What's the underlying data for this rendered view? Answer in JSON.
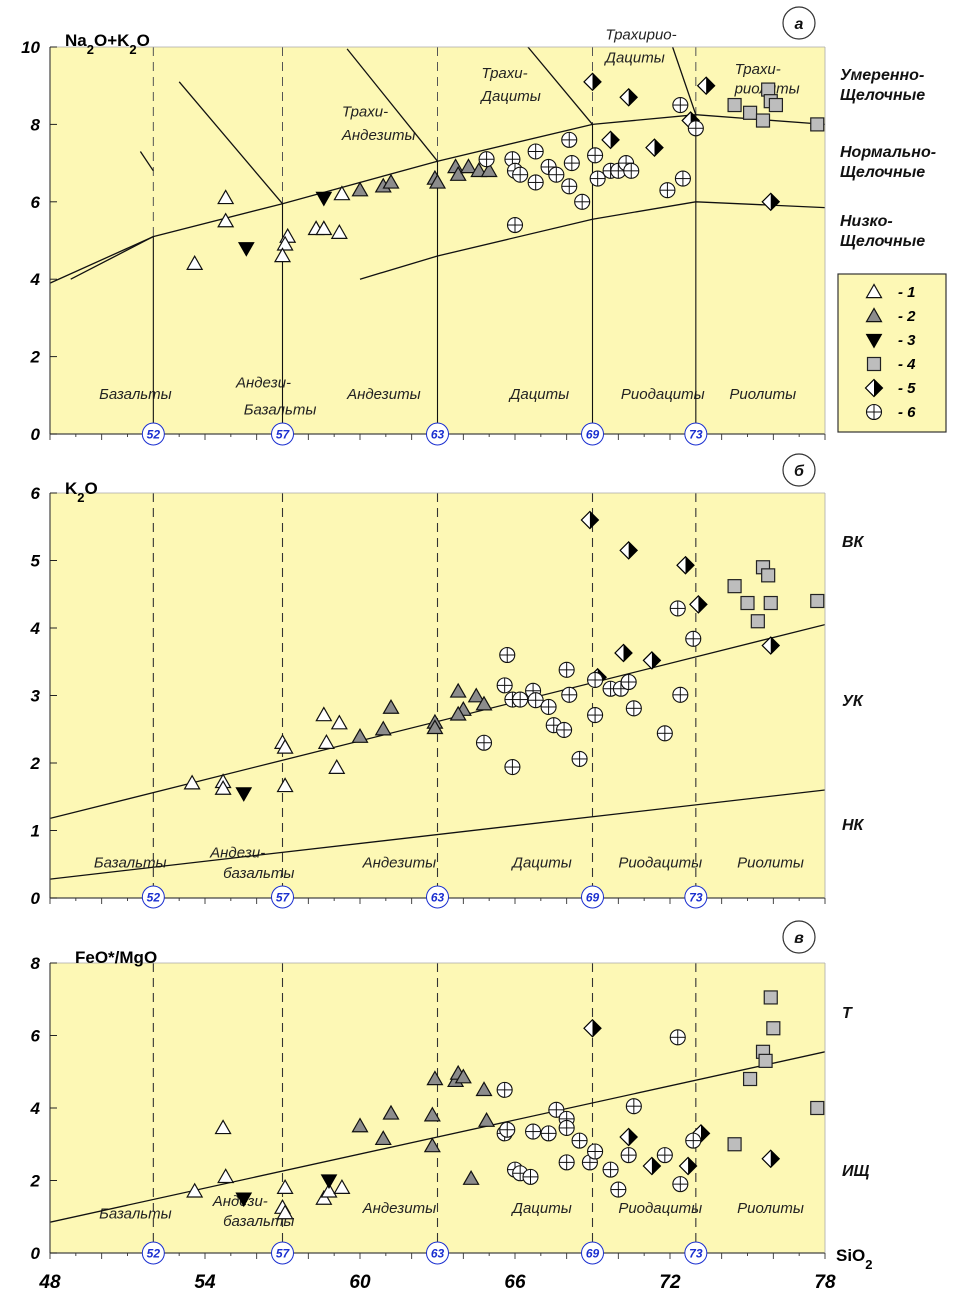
{
  "colors": {
    "plot_bg": "#fdf8b5",
    "frame": "#444444",
    "line": "#111111",
    "bound_blue": "#1a2fd0",
    "sym_white": "#ffffff",
    "sym_gray": "#8c8c8c",
    "sym_black": "#000000",
    "sym_light_gray": "#bdbdbd"
  },
  "x_axis": {
    "label": "SiO2",
    "ticks": [
      48,
      54,
      60,
      66,
      72,
      78
    ],
    "range": [
      48,
      78
    ]
  },
  "legend": {
    "entries": [
      {
        "symbol": "triangle-white",
        "label": "- 1"
      },
      {
        "symbol": "triangle-gray",
        "label": "- 2"
      },
      {
        "symbol": "triangle-down-black",
        "label": "- 3"
      },
      {
        "symbol": "square-gray",
        "label": "- 4"
      },
      {
        "symbol": "diamond-half",
        "label": "- 5"
      },
      {
        "symbol": "circle-cross",
        "label": "- 6"
      }
    ]
  },
  "chart_data": [
    {
      "type": "scatter",
      "panel_letter": "а",
      "ylabel": "Na2O+K2O",
      "ylim": [
        0,
        10
      ],
      "yticks": [
        0,
        2,
        4,
        6,
        8,
        10
      ],
      "boundaries": [
        "52",
        "57",
        "63",
        "69",
        "73"
      ],
      "fields": [
        {
          "text": "Базальты",
          "x": 49.9,
          "y": 0.9
        },
        {
          "text": "Андези-",
          "x": 55.2,
          "y": 1.2
        },
        {
          "text": "Базальты",
          "x": 55.5,
          "y": 0.5
        },
        {
          "text": "Андезиты",
          "x": 59.5,
          "y": 0.9
        },
        {
          "text": "Дациты",
          "x": 65.8,
          "y": 0.9
        },
        {
          "text": "Риодациты",
          "x": 70.1,
          "y": 0.9
        },
        {
          "text": "Риолиты",
          "x": 74.3,
          "y": 0.9
        },
        {
          "text": "Трахи-",
          "x": 59.3,
          "y": 8.2
        },
        {
          "text": "Андезиты",
          "x": 59.3,
          "y": 7.6
        },
        {
          "text": "Трахи-",
          "x": 64.7,
          "y": 9.2
        },
        {
          "text": "Дациты",
          "x": 64.7,
          "y": 8.6
        },
        {
          "text": "Трахирио-",
          "x": 69.5,
          "y": 10.2
        },
        {
          "text": "Дациты",
          "x": 69.5,
          "y": 9.6
        },
        {
          "text": "Трахи-",
          "x": 74.5,
          "y": 9.3
        },
        {
          "text": "риолиты",
          "x": 74.5,
          "y": 8.8
        }
      ],
      "right_labels": [
        [
          "Умеренно-",
          "Щелочные"
        ],
        [
          "Нормально-",
          "Щелочные"
        ],
        [
          "Низко-",
          "Щелочные"
        ]
      ],
      "series": [
        {
          "name": "1",
          "symbol": "triangle-white",
          "points": [
            [
              53.6,
              4.4
            ],
            [
              54.8,
              6.1
            ],
            [
              54.8,
              5.5
            ],
            [
              57.2,
              5.1
            ],
            [
              57.1,
              4.9
            ],
            [
              57.0,
              4.6
            ],
            [
              58.3,
              5.3
            ],
            [
              58.6,
              5.3
            ],
            [
              59.2,
              5.2
            ],
            [
              59.3,
              6.2
            ]
          ]
        },
        {
          "name": "2",
          "symbol": "triangle-gray",
          "points": [
            [
              60.0,
              6.3
            ],
            [
              60.9,
              6.4
            ],
            [
              61.2,
              6.5
            ],
            [
              62.9,
              6.6
            ],
            [
              63.0,
              6.5
            ],
            [
              63.7,
              6.9
            ],
            [
              63.8,
              6.7
            ],
            [
              64.2,
              6.9
            ],
            [
              64.6,
              6.8
            ],
            [
              65.0,
              6.8
            ]
          ]
        },
        {
          "name": "3",
          "symbol": "triangle-down-black",
          "points": [
            [
              55.6,
              4.8
            ],
            [
              58.6,
              6.1
            ]
          ]
        },
        {
          "name": "4",
          "symbol": "square-gray",
          "points": [
            [
              74.5,
              8.5
            ],
            [
              75.1,
              8.3
            ],
            [
              75.6,
              8.1
            ],
            [
              75.8,
              8.9
            ],
            [
              75.9,
              8.6
            ],
            [
              76.1,
              8.5
            ],
            [
              77.7,
              8.0
            ]
          ]
        },
        {
          "name": "5",
          "symbol": "diamond-half",
          "points": [
            [
              69.0,
              9.1
            ],
            [
              70.4,
              8.7
            ],
            [
              73.4,
              9.0
            ],
            [
              69.7,
              7.6
            ],
            [
              71.4,
              7.4
            ],
            [
              72.8,
              8.1
            ],
            [
              75.9,
              6.0
            ]
          ]
        },
        {
          "name": "6",
          "symbol": "circle-cross",
          "points": [
            [
              64.9,
              7.1
            ],
            [
              65.9,
              7.1
            ],
            [
              66.0,
              6.8
            ],
            [
              66.2,
              6.7
            ],
            [
              66.8,
              7.3
            ],
            [
              66.8,
              6.5
            ],
            [
              67.3,
              6.9
            ],
            [
              67.6,
              6.7
            ],
            [
              68.1,
              7.6
            ],
            [
              68.2,
              7.0
            ],
            [
              68.1,
              6.4
            ],
            [
              68.6,
              6.0
            ],
            [
              69.1,
              7.2
            ],
            [
              69.2,
              6.6
            ],
            [
              69.7,
              6.8
            ],
            [
              70.0,
              6.8
            ],
            [
              70.3,
              7.0
            ],
            [
              70.5,
              6.8
            ],
            [
              71.9,
              6.3
            ],
            [
              72.4,
              8.5
            ],
            [
              72.5,
              6.6
            ],
            [
              73.0,
              7.9
            ],
            [
              66.0,
              5.4
            ]
          ]
        }
      ]
    },
    {
      "type": "scatter",
      "panel_letter": "б",
      "ylabel": "K2O",
      "ylim": [
        0,
        6
      ],
      "yticks": [
        0,
        1,
        2,
        3,
        4,
        5,
        6
      ],
      "boundaries": [
        "52",
        "57",
        "63",
        "69",
        "73"
      ],
      "fields": [
        {
          "text": "Базальты",
          "x": 49.7,
          "y": 0.45
        },
        {
          "text": "Андези-",
          "x": 54.2,
          "y": 0.6
        },
        {
          "text": "базальты",
          "x": 54.7,
          "y": 0.3
        },
        {
          "text": "Андезиты",
          "x": 60.1,
          "y": 0.45
        },
        {
          "text": "Дациты",
          "x": 65.9,
          "y": 0.45
        },
        {
          "text": "Риодациты",
          "x": 70.0,
          "y": 0.45
        },
        {
          "text": "Риолиты",
          "x": 74.6,
          "y": 0.45
        }
      ],
      "right_labels": [
        [
          "ВК"
        ],
        [
          "УК"
        ],
        [
          "НК"
        ]
      ],
      "series": [
        {
          "name": "1",
          "symbol": "triangle-white",
          "points": [
            [
              53.5,
              1.7
            ],
            [
              54.7,
              1.72
            ],
            [
              54.7,
              1.62
            ],
            [
              57.0,
              2.3
            ],
            [
              57.1,
              2.23
            ],
            [
              57.1,
              1.66
            ],
            [
              58.6,
              2.71
            ],
            [
              58.7,
              2.3
            ],
            [
              59.2,
              2.59
            ],
            [
              59.1,
              1.93
            ]
          ]
        },
        {
          "name": "2",
          "symbol": "triangle-gray",
          "points": [
            [
              60.0,
              2.39
            ],
            [
              60.9,
              2.5
            ],
            [
              61.2,
              2.82
            ],
            [
              62.9,
              2.6
            ],
            [
              62.9,
              2.52
            ],
            [
              63.8,
              3.06
            ],
            [
              64.0,
              2.79
            ],
            [
              64.5,
              2.99
            ],
            [
              64.8,
              2.87
            ],
            [
              63.8,
              2.72
            ]
          ]
        },
        {
          "name": "3",
          "symbol": "triangle-down-black",
          "points": [
            [
              55.5,
              1.55
            ]
          ]
        },
        {
          "name": "4",
          "symbol": "square-gray",
          "points": [
            [
              74.5,
              4.62
            ],
            [
              75.0,
              4.37
            ],
            [
              75.4,
              4.1
            ],
            [
              75.6,
              4.9
            ],
            [
              75.8,
              4.78
            ],
            [
              75.9,
              4.37
            ],
            [
              77.7,
              4.4
            ]
          ]
        },
        {
          "name": "5",
          "symbol": "diamond-half",
          "points": [
            [
              68.9,
              5.6
            ],
            [
              70.4,
              5.15
            ],
            [
              72.6,
              4.93
            ],
            [
              73.1,
              4.35
            ],
            [
              70.2,
              3.63
            ],
            [
              71.3,
              3.52
            ],
            [
              75.9,
              3.74
            ],
            [
              69.2,
              3.27
            ]
          ]
        },
        {
          "name": "6",
          "symbol": "circle-cross",
          "points": [
            [
              65.7,
              3.6
            ],
            [
              65.6,
              3.15
            ],
            [
              65.9,
              2.94
            ],
            [
              66.2,
              2.94
            ],
            [
              66.7,
              3.07
            ],
            [
              66.8,
              2.93
            ],
            [
              67.3,
              2.83
            ],
            [
              67.5,
              2.56
            ],
            [
              67.9,
              2.49
            ],
            [
              68.0,
              3.38
            ],
            [
              68.1,
              3.01
            ],
            [
              68.5,
              2.06
            ],
            [
              69.1,
              3.23
            ],
            [
              69.1,
              2.71
            ],
            [
              69.7,
              3.1
            ],
            [
              70.1,
              3.1
            ],
            [
              70.4,
              3.2
            ],
            [
              70.6,
              2.81
            ],
            [
              71.8,
              2.44
            ],
            [
              72.3,
              4.29
            ],
            [
              72.4,
              3.01
            ],
            [
              72.9,
              3.84
            ],
            [
              64.8,
              2.3
            ],
            [
              65.9,
              1.94
            ]
          ]
        }
      ]
    },
    {
      "type": "scatter",
      "panel_letter": "в",
      "ylabel": "FeO*/MgO",
      "ylim": [
        0,
        8
      ],
      "yticks": [
        0,
        2,
        4,
        6,
        8
      ],
      "boundaries": [
        "52",
        "57",
        "63",
        "69",
        "73"
      ],
      "fields": [
        {
          "text": "Базальты",
          "x": 49.9,
          "y": 0.95
        },
        {
          "text": "Андези-",
          "x": 54.3,
          "y": 1.3
        },
        {
          "text": "базальты",
          "x": 54.7,
          "y": 0.75
        },
        {
          "text": "Андезиты",
          "x": 60.1,
          "y": 1.1
        },
        {
          "text": "Дациты",
          "x": 65.9,
          "y": 1.1
        },
        {
          "text": "Риодациты",
          "x": 70.0,
          "y": 1.1
        },
        {
          "text": "Риолиты",
          "x": 74.6,
          "y": 1.1
        }
      ],
      "right_labels": [
        [
          "Т"
        ],
        [
          "ИЩ"
        ]
      ],
      "series": [
        {
          "name": "1",
          "symbol": "triangle-white",
          "points": [
            [
              53.6,
              1.7
            ],
            [
              54.7,
              3.45
            ],
            [
              54.8,
              2.1
            ],
            [
              57.1,
              1.8
            ],
            [
              57.0,
              1.25
            ],
            [
              57.1,
              1.1
            ],
            [
              58.6,
              1.5
            ],
            [
              58.8,
              1.7
            ],
            [
              59.3,
              1.8
            ]
          ]
        },
        {
          "name": "2",
          "symbol": "triangle-gray",
          "points": [
            [
              60.0,
              3.5
            ],
            [
              60.9,
              3.15
            ],
            [
              61.2,
              3.85
            ],
            [
              62.8,
              3.8
            ],
            [
              62.8,
              2.95
            ],
            [
              62.9,
              4.8
            ],
            [
              63.7,
              4.75
            ],
            [
              63.8,
              4.95
            ],
            [
              64.0,
              4.85
            ],
            [
              64.8,
              4.5
            ],
            [
              64.9,
              3.65
            ],
            [
              64.3,
              2.05
            ]
          ]
        },
        {
          "name": "3",
          "symbol": "triangle-down-black",
          "points": [
            [
              55.5,
              1.5
            ],
            [
              58.8,
              2.0
            ]
          ]
        },
        {
          "name": "4",
          "symbol": "square-gray",
          "points": [
            [
              74.5,
              3.0
            ],
            [
              75.1,
              4.8
            ],
            [
              75.6,
              5.55
            ],
            [
              75.7,
              5.3
            ],
            [
              75.9,
              7.05
            ],
            [
              76.0,
              6.2
            ],
            [
              77.7,
              4.0
            ]
          ]
        },
        {
          "name": "5",
          "symbol": "diamond-half",
          "points": [
            [
              69.0,
              6.2
            ],
            [
              70.4,
              3.2
            ],
            [
              71.3,
              2.4
            ],
            [
              72.7,
              2.4
            ],
            [
              73.2,
              3.3
            ],
            [
              75.9,
              2.6
            ]
          ]
        },
        {
          "name": "6",
          "symbol": "circle-cross",
          "points": [
            [
              65.6,
              4.5
            ],
            [
              65.6,
              3.3
            ],
            [
              65.7,
              3.4
            ],
            [
              66.0,
              2.3
            ],
            [
              66.2,
              2.2
            ],
            [
              66.6,
              2.1
            ],
            [
              66.7,
              3.35
            ],
            [
              67.3,
              3.3
            ],
            [
              67.6,
              3.95
            ],
            [
              68.0,
              3.7
            ],
            [
              68.0,
              3.45
            ],
            [
              68.0,
              2.5
            ],
            [
              68.5,
              3.1
            ],
            [
              68.9,
              2.5
            ],
            [
              69.1,
              2.8
            ],
            [
              69.7,
              2.3
            ],
            [
              70.0,
              1.75
            ],
            [
              70.4,
              2.7
            ],
            [
              70.6,
              4.05
            ],
            [
              71.8,
              2.7
            ],
            [
              72.3,
              5.95
            ],
            [
              72.4,
              1.9
            ],
            [
              72.9,
              3.1
            ]
          ]
        }
      ]
    }
  ]
}
